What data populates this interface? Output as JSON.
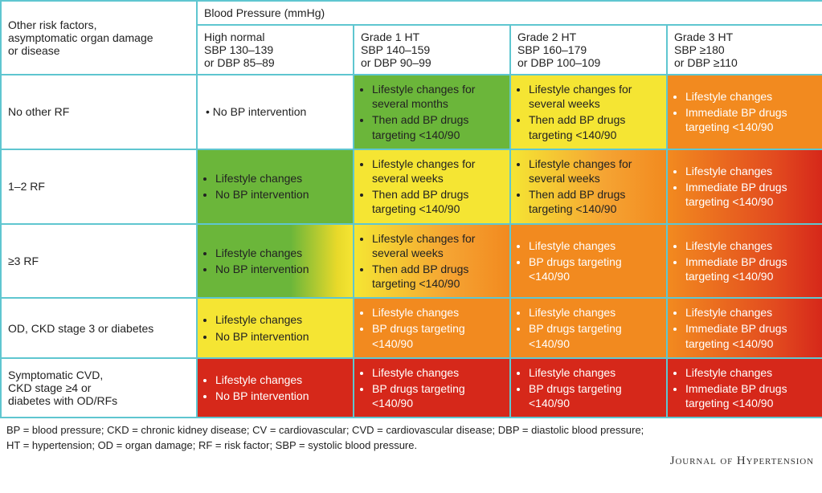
{
  "colors": {
    "border": "#5fc6d0",
    "white": "#ffffff",
    "green": "#6bb63a",
    "yellow": "#f5e533",
    "orange": "#f28a1f",
    "red": "#d6281a",
    "text_dark": "#222222",
    "text_light": "#ffffff"
  },
  "header": {
    "row_title_l1": "Other risk factors,",
    "row_title_l2": "asymptomatic organ damage",
    "row_title_l3": "or disease",
    "bp_title": "Blood Pressure (mmHg)",
    "cols": [
      {
        "t1": "High normal",
        "t2": "SBP 130–139",
        "t3": "or DBP 85–89"
      },
      {
        "t1": "Grade 1 HT",
        "t2": "SBP 140–159",
        "t3": "or DBP 90–99"
      },
      {
        "t1": "Grade 2 HT",
        "t2": "SBP 160–179",
        "t3": "or DBP 100–109"
      },
      {
        "t1": "Grade 3 HT",
        "t2": "SBP ≥180",
        "t3": "or DBP ≥110"
      }
    ]
  },
  "rows": [
    {
      "label": "No other RF",
      "cells": [
        {
          "bg": "#ffffff",
          "txt": "dark",
          "items": [
            "No BP intervention"
          ]
        },
        {
          "bg": "#6bb63a",
          "txt": "dark",
          "items": [
            "Lifestyle changes for several months",
            "Then add BP drugs targeting <140/90"
          ]
        },
        {
          "bg": "#f5e533",
          "txt": "dark",
          "items": [
            "Lifestyle changes for several weeks",
            "Then add BP drugs targeting <140/90"
          ]
        },
        {
          "bg": "#f28a1f",
          "txt": "light",
          "items": [
            "Lifestyle changes",
            "Immediate BP drugs targeting <140/90"
          ]
        }
      ]
    },
    {
      "label": "1–2 RF",
      "cells": [
        {
          "bg": "#6bb63a",
          "txt": "dark",
          "items": [
            "Lifestyle changes",
            "No BP intervention"
          ]
        },
        {
          "bg": "#f5e533",
          "txt": "dark",
          "items": [
            "Lifestyle changes for several weeks",
            "Then add BP drugs targeting <140/90"
          ]
        },
        {
          "bg": "grad-yellow-orange",
          "txt": "dark",
          "items": [
            "Lifestyle changes for several weeks",
            "Then add BP drugs targeting <140/90"
          ]
        },
        {
          "bg": "grad-orange-red",
          "txt": "light",
          "items": [
            "Lifestyle changes",
            "Immediate BP drugs targeting <140/90"
          ]
        }
      ]
    },
    {
      "label": "≥3 RF",
      "cells": [
        {
          "bg": "grad-green-yellow",
          "txt": "dark",
          "items": [
            "Lifestyle changes",
            "No BP intervention"
          ]
        },
        {
          "bg": "grad-yellow-orange",
          "txt": "dark",
          "items": [
            "Lifestyle changes for several weeks",
            "Then add BP drugs targeting <140/90"
          ]
        },
        {
          "bg": "#f28a1f",
          "txt": "light",
          "items": [
            "Lifestyle changes",
            "BP drugs targeting <140/90"
          ]
        },
        {
          "bg": "grad-orange-red",
          "txt": "light",
          "items": [
            "Lifestyle changes",
            "Immediate BP drugs targeting <140/90"
          ]
        }
      ]
    },
    {
      "label": "OD, CKD stage 3 or diabetes",
      "cells": [
        {
          "bg": "#f5e533",
          "txt": "dark",
          "items": [
            "Lifestyle changes",
            "No BP intervention"
          ]
        },
        {
          "bg": "#f28a1f",
          "txt": "light",
          "items": [
            "Lifestyle changes",
            "BP drugs targeting <140/90"
          ]
        },
        {
          "bg": "#f28a1f",
          "txt": "light",
          "items": [
            "Lifestyle changes",
            "BP drugs targeting <140/90"
          ]
        },
        {
          "bg": "grad-orange-red",
          "txt": "light",
          "items": [
            "Lifestyle changes",
            "Immediate BP drugs targeting <140/90"
          ]
        }
      ]
    },
    {
      "label_l1": "Symptomatic CVD,",
      "label_l2": "CKD stage ≥4 or",
      "label_l3": "diabetes with OD/RFs",
      "cells": [
        {
          "bg": "#d6281a",
          "txt": "light",
          "items": [
            "Lifestyle changes",
            "No BP intervention"
          ]
        },
        {
          "bg": "#d6281a",
          "txt": "light",
          "items": [
            "Lifestyle changes",
            "BP drugs targeting <140/90"
          ]
        },
        {
          "bg": "#d6281a",
          "txt": "light",
          "items": [
            "Lifestyle changes",
            "BP drugs targeting <140/90"
          ]
        },
        {
          "bg": "#d6281a",
          "txt": "light",
          "items": [
            "Lifestyle changes",
            "Immediate BP drugs targeting <140/90"
          ]
        }
      ]
    }
  ],
  "legend_l1": "BP = blood pressure;  CKD = chronic kidney disease; CV = cardiovascular; CVD = cardiovascular disease; DBP = diastolic blood pressure;",
  "legend_l2": "HT = hypertension; OD = organ damage; RF = risk factor; SBP = systolic blood pressure.",
  "journal": "Journal of Hypertension"
}
